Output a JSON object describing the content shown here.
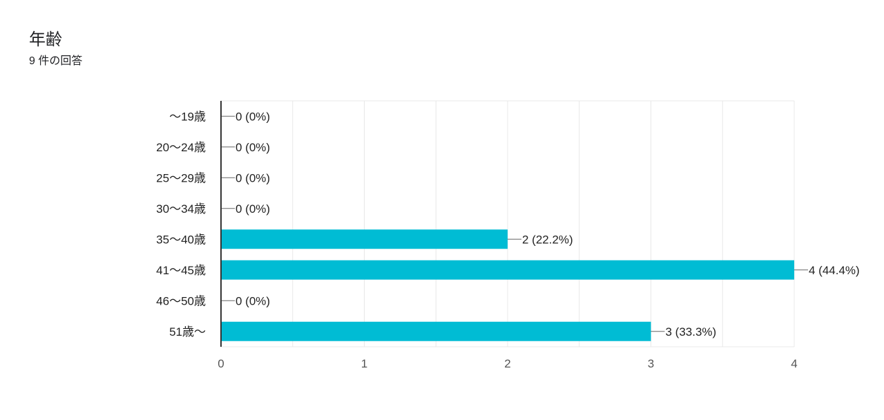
{
  "question": {
    "title": "年齢",
    "response_count": "9 件の回答"
  },
  "colors": {
    "bar": "#00bcd4",
    "grid": "#e8e8e8",
    "axis": "#333333",
    "text": "#222222"
  },
  "chart_data": {
    "type": "bar",
    "orientation": "horizontal",
    "categories": [
      "〜19歳",
      "20〜24歳",
      "25〜29歳",
      "30〜34歳",
      "35〜40歳",
      "41〜45歳",
      "46〜50歳",
      "51歳〜"
    ],
    "values": [
      0,
      0,
      0,
      0,
      2,
      4,
      0,
      3
    ],
    "data_labels": [
      "0 (0%)",
      "0 (0%)",
      "0 (0%)",
      "0 (0%)",
      "2 (22.2%)",
      "4 (44.4%)",
      "0 (0%)",
      "3 (33.3%)"
    ],
    "xlim": [
      0,
      4
    ],
    "x_ticks": [
      "0",
      "1",
      "2",
      "3",
      "4"
    ],
    "grid": true,
    "legend": "none"
  }
}
